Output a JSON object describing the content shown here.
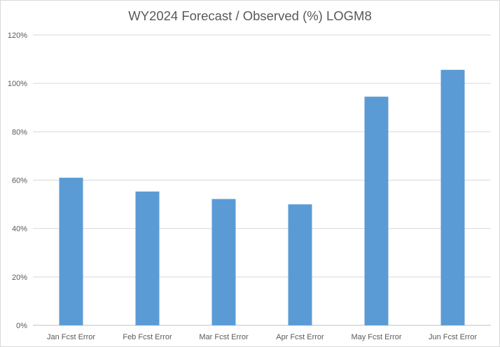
{
  "chart_data": {
    "type": "bar",
    "title": "WY2024 Forecast / Observed (%) LOGM8",
    "xlabel": "",
    "ylabel": "",
    "categories": [
      "Jan Fcst Error",
      "Feb Fcst Error",
      "Mar Fcst Error",
      "Apr Fcst Error",
      "May Fcst Error",
      "Jun Fcst Error"
    ],
    "values": [
      61,
      55.3,
      52.2,
      50,
      94.5,
      105.6
    ],
    "value_unit": "%",
    "ylim": [
      0,
      120
    ],
    "yticks": [
      0,
      20,
      40,
      60,
      80,
      100,
      120
    ],
    "ytick_labels": [
      "0%",
      "20%",
      "40%",
      "60%",
      "80%",
      "100%",
      "120%"
    ],
    "grid": "horizontal",
    "legend": "none",
    "colors": {
      "bar": "#5b9bd5",
      "grid": "#d9d9d9",
      "text": "#595959"
    }
  }
}
